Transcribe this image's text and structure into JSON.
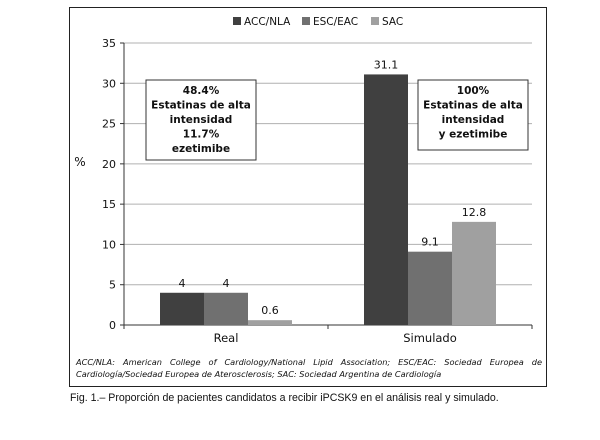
{
  "chart_data": {
    "type": "bar",
    "categories": [
      "Real",
      "Simulado"
    ],
    "series": [
      {
        "name": "ACC/NLA",
        "values": [
          4,
          31.1
        ],
        "color": "#404040"
      },
      {
        "name": "ESC/EAC",
        "values": [
          4,
          9.1
        ],
        "color": "#707070"
      },
      {
        "name": "SAC",
        "values": [
          0.6,
          12.8
        ],
        "color": "#a0a0a0"
      }
    ],
    "data_labels": [
      [
        "4",
        "4",
        "0.6"
      ],
      [
        "31.1",
        "9.1",
        "12.8"
      ]
    ],
    "ylabel": "%",
    "ylim": [
      0,
      35
    ],
    "yticks": [
      0,
      5,
      10,
      15,
      20,
      25,
      30,
      35
    ],
    "grid": true,
    "legend_position": "top",
    "annotations": [
      {
        "lines": [
          "48.4%",
          "Estatinas de alta",
          "intensidad",
          "11.7%",
          "ezetimibe"
        ]
      },
      {
        "lines": [
          "100%",
          "Estatinas de alta",
          "intensidad",
          "y ezetimibe"
        ]
      }
    ]
  },
  "footnote": "ACC/NLA: American College of Cardiology/National Lipid Association; ESC/EAC: Sociedad Europea de Cardiología/Sociedad Europea de Aterosclerosis; SAC: Sociedad Argentina de Cardiología",
  "caption": "Fig. 1.– Proporción de pacientes candidatos a recibir iPCSK9 en el análisis real y simulado."
}
